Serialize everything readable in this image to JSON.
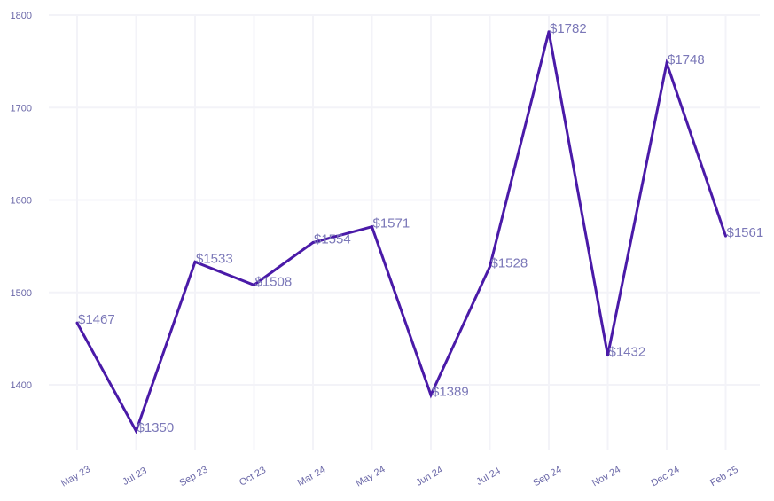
{
  "chart_data": {
    "type": "line",
    "title": "",
    "xlabel": "",
    "ylabel": "",
    "categories": [
      "May 23",
      "Jul 23",
      "Sep 23",
      "Oct 23",
      "Mar 24",
      "May 24",
      "Jun 24",
      "Jul 24",
      "Sep 24",
      "Nov 24",
      "Dec 24",
      "Feb 25"
    ],
    "series": [
      {
        "values": [
          1467,
          1350,
          1533,
          1508,
          1554,
          1571,
          1389,
          1528,
          1782,
          1432,
          1748,
          1561
        ]
      }
    ],
    "data_labels": [
      "$1467",
      "$1350",
      "$1533",
      "$1508",
      "$1554",
      "$1571",
      "$1389",
      "$1528",
      "$1782",
      "$1432",
      "$1748",
      "$1561"
    ],
    "yticks": [
      1400,
      1500,
      1600,
      1700,
      1800
    ],
    "ylim": [
      1330,
      1800
    ],
    "grid": true,
    "legend": "none",
    "colors": {
      "line": "#4a1aa8",
      "labels": "#7b78b8",
      "ticks": "#6b68a8",
      "grid": "#f3f3f8"
    }
  }
}
